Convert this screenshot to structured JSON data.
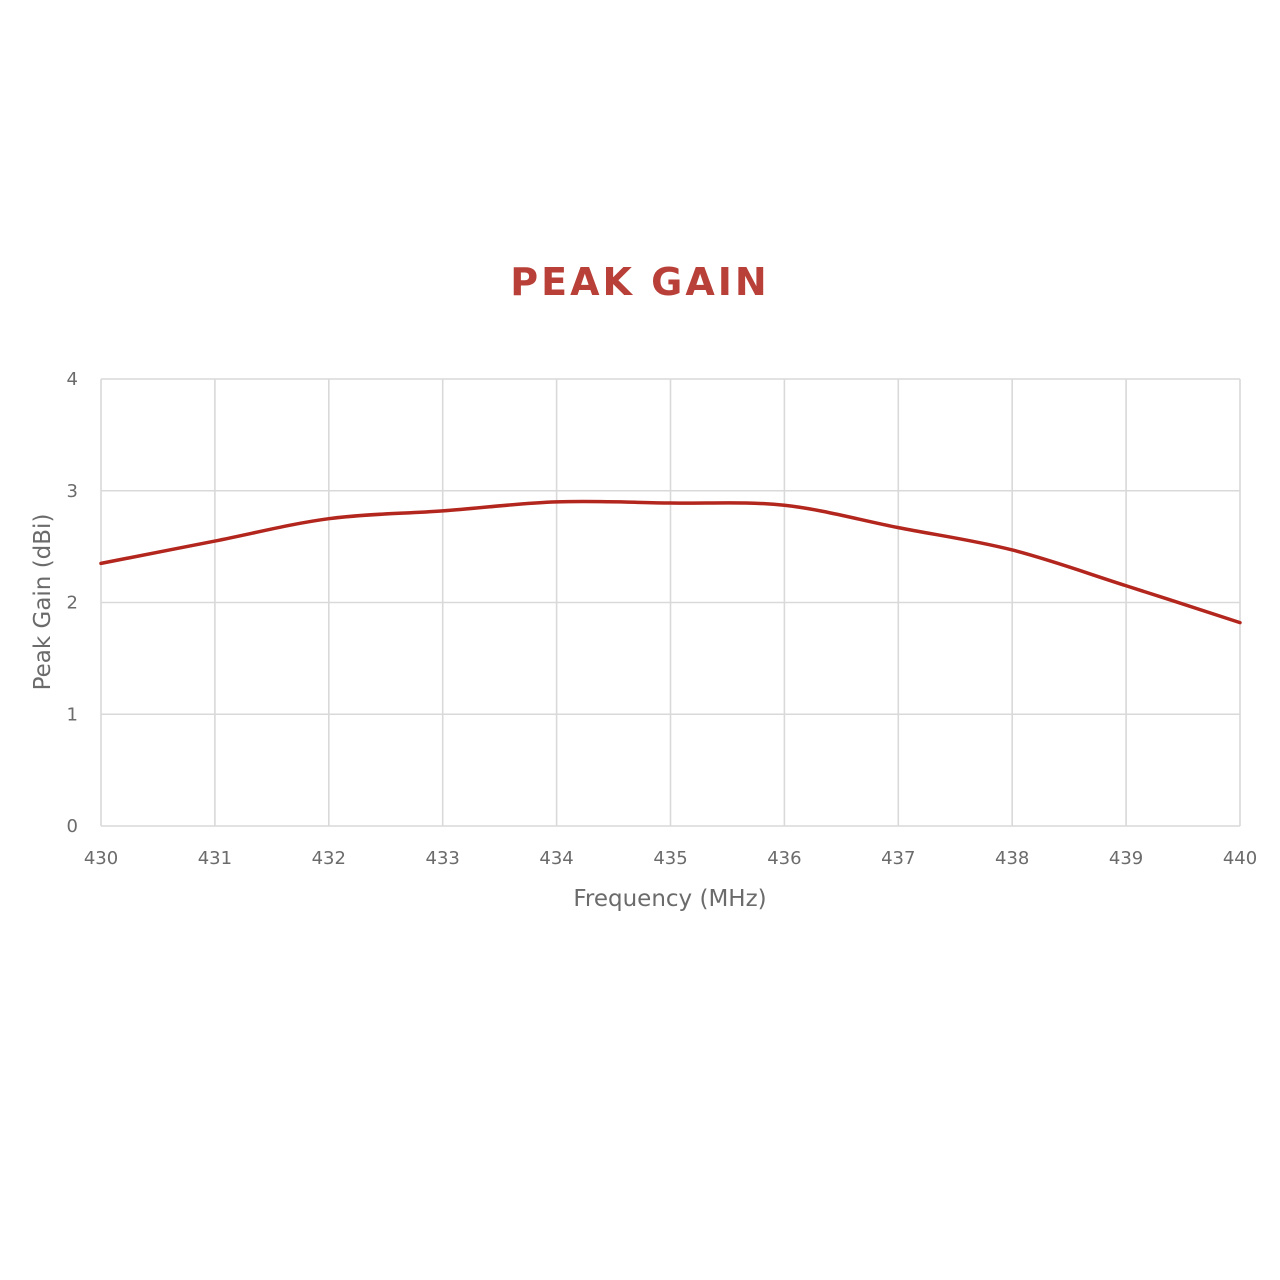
{
  "chart_data": {
    "type": "line",
    "title": "PEAK GAIN",
    "xlabel": "Frequency (MHz)",
    "ylabel": "Peak Gain (dBi)",
    "xlim": [
      430,
      440
    ],
    "ylim": [
      0,
      4
    ],
    "x_ticks": [
      "430",
      "431",
      "432",
      "433",
      "434",
      "435",
      "436",
      "437",
      "438",
      "439",
      "440"
    ],
    "y_ticks": [
      "0",
      "1",
      "2",
      "3",
      "4"
    ],
    "grid": true,
    "legend": "none",
    "series": [
      {
        "color": "#b3261e",
        "x": [
          430,
          431,
          432,
          433,
          434,
          435,
          436,
          437,
          438,
          439,
          440
        ],
        "y": [
          2.35,
          2.55,
          2.75,
          2.82,
          2.9,
          2.89,
          2.87,
          2.67,
          2.47,
          2.15,
          1.82
        ]
      }
    ]
  }
}
